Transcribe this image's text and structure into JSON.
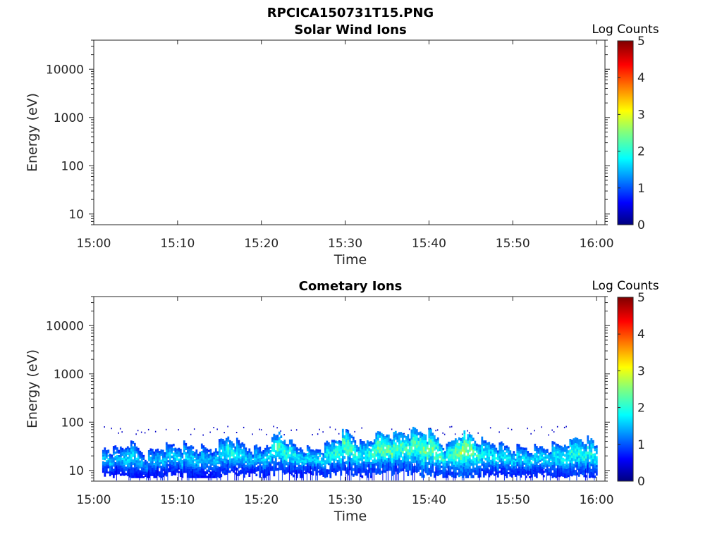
{
  "figure_title": "RPCICA150731T15.PNG",
  "colors": {
    "axis": "#262626",
    "background": "#ffffff",
    "colormap": "jet"
  },
  "chart_data": [
    {
      "type": "heatmap",
      "title": "Solar Wind Ions",
      "xlabel": "Time",
      "ylabel": "Energy (eV)",
      "x_ticks": [
        "15:00",
        "15:10",
        "15:20",
        "15:30",
        "15:40",
        "15:50",
        "16:00"
      ],
      "x_range": [
        "15:00",
        "16:01"
      ],
      "y_scale": "log",
      "y_ticks": [
        "10",
        "100",
        "1000",
        "10000"
      ],
      "y_range": [
        6,
        40000
      ],
      "colorbar": {
        "title": "Log Counts",
        "ticks": [
          "0",
          "1",
          "2",
          "3",
          "4",
          "5"
        ],
        "range": [
          0,
          5
        ]
      },
      "data": []
    },
    {
      "type": "heatmap",
      "title": "Cometary Ions",
      "xlabel": "Time",
      "ylabel": "Energy (eV)",
      "x_ticks": [
        "15:00",
        "15:10",
        "15:20",
        "15:30",
        "15:40",
        "15:50",
        "16:00"
      ],
      "x_range": [
        "15:00",
        "16:01"
      ],
      "y_scale": "log",
      "y_ticks": [
        "10",
        "100",
        "1000",
        "10000"
      ],
      "y_range": [
        6,
        40000
      ],
      "colorbar": {
        "title": "Log Counts",
        "ticks": [
          "0",
          "1",
          "2",
          "3",
          "4",
          "5"
        ],
        "range": [
          0,
          5
        ]
      },
      "data_range": {
        "time": [
          "15:01",
          "16:00"
        ],
        "energy_eV": [
          7,
          80
        ]
      },
      "band": {
        "times": [
          "15:01",
          "15:03",
          "15:04",
          "15:06",
          "15:08",
          "15:10",
          "15:12",
          "15:14",
          "15:16",
          "15:18",
          "15:20",
          "15:22",
          "15:24",
          "15:26",
          "15:28",
          "15:30",
          "15:32",
          "15:34",
          "15:36",
          "15:38",
          "15:40",
          "15:42",
          "15:44",
          "15:46",
          "15:48",
          "15:50",
          "15:52",
          "15:54",
          "15:56",
          "15:58",
          "16:00"
        ],
        "upper_eV": [
          30,
          28,
          40,
          22,
          30,
          35,
          30,
          28,
          50,
          32,
          28,
          60,
          32,
          28,
          35,
          65,
          35,
          60,
          55,
          65,
          60,
          30,
          60,
          40,
          35,
          30,
          28,
          30,
          35,
          45,
          35
        ],
        "lower_eV": [
          14,
          13,
          12,
          9,
          14,
          15,
          11,
          10,
          15,
          13,
          14,
          16,
          13,
          15,
          14,
          16,
          14,
          15,
          16,
          15,
          14,
          13,
          12,
          13,
          14,
          13,
          14,
          13,
          12,
          14,
          13
        ],
        "peak_log_counts": [
          1.4,
          1.3,
          1.6,
          1.2,
          1.4,
          1.5,
          1.4,
          1.3,
          1.8,
          1.5,
          1.4,
          2.0,
          1.6,
          1.5,
          1.7,
          2.1,
          1.6,
          2.2,
          2.0,
          2.1,
          2.3,
          1.7,
          2.6,
          1.8,
          1.6,
          1.5,
          1.5,
          1.6,
          1.7,
          1.9,
          1.7
        ]
      }
    }
  ]
}
